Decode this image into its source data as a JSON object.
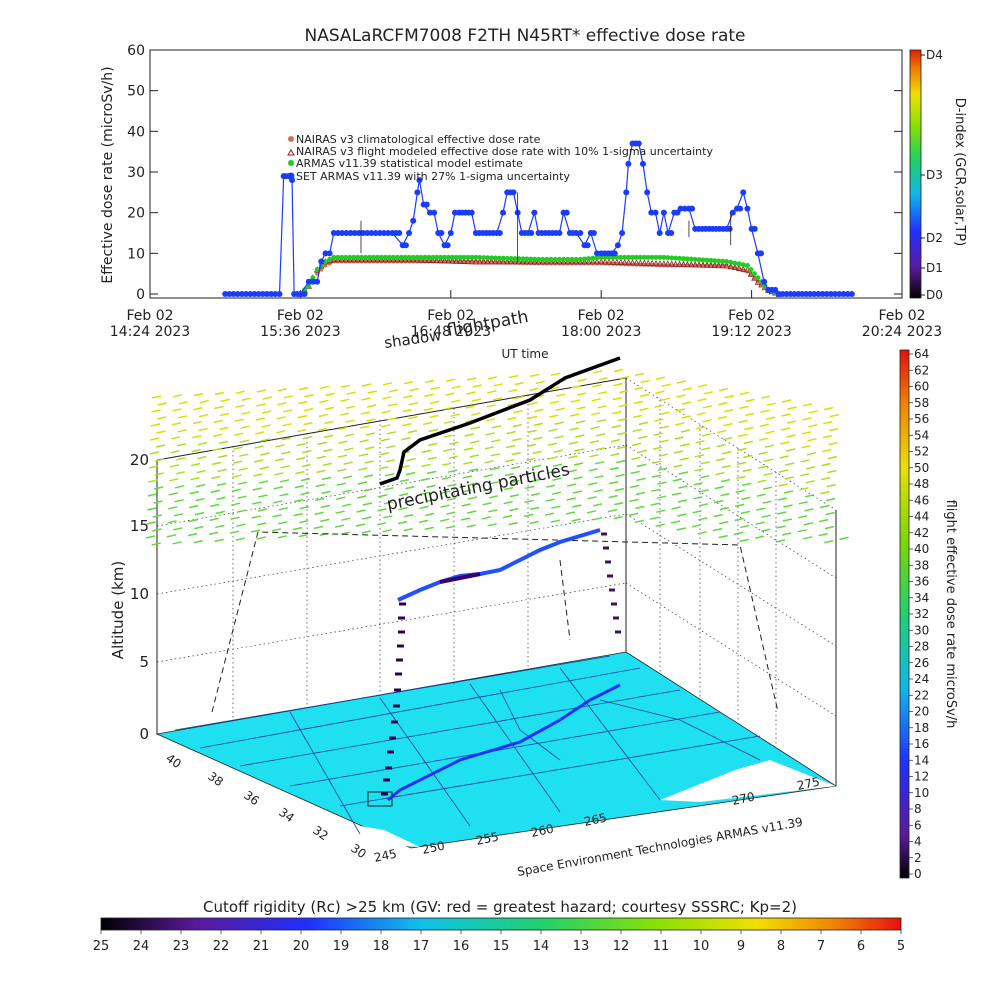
{
  "title": "NASALaRCFM7008  F2TH N45RT* effective dose rate",
  "top_panel": {
    "ylabel": "Effective dose rate (microSv/h)",
    "xlabel": "UT time",
    "x_ticks": [
      {
        "line1": "Feb 02",
        "line2": "14:24 2023"
      },
      {
        "line1": "Feb 02",
        "line2": "15:36 2023"
      },
      {
        "line1": "Feb 02",
        "line2": "16:48 2023"
      },
      {
        "line1": "Feb 02",
        "line2": "18:00 2023"
      },
      {
        "line1": "Feb 02",
        "line2": "19:12 2023"
      },
      {
        "line1": "Feb 02",
        "line2": "20:24 2023"
      }
    ],
    "y_ticks": [
      "0",
      "10",
      "20",
      "30",
      "40",
      "50",
      "60"
    ],
    "legend": [
      "NAIRAS v3 climatological effective dose rate",
      "NAIRAS v3 flight modeled effective dose rate with 10% 1-sigma uncertainty",
      "ARMAS v11.39 statistical model estimate",
      "SET ARMAS v11.39 with 27% 1-sigma uncertainty"
    ],
    "right_bar": {
      "label": "D-index (GCR,solar,TP)",
      "ticks": [
        "D4",
        "D3",
        "D2",
        "D1",
        "D0"
      ]
    }
  },
  "bottom_panel": {
    "ylabel": "Altitude (km)",
    "z_ticks": [
      "0",
      "5",
      "10",
      "15",
      "20"
    ],
    "lat_ticks": [
      "30",
      "32",
      "34",
      "36",
      "38",
      "40"
    ],
    "lon_ticks": [
      "245",
      "250",
      "255",
      "260",
      "265",
      "270",
      "275"
    ],
    "label_shadow": "shadow",
    "label_flightpath": "flightpath",
    "label_precip": "precipitating particles",
    "credit": "Space Environment Technologies ARMAS v11.39",
    "right_bar": {
      "label": "flight effective dose rate microSv/h",
      "ticks": [
        "64",
        "62",
        "60",
        "58",
        "56",
        "54",
        "52",
        "50",
        "48",
        "46",
        "44",
        "42",
        "40",
        "38",
        "36",
        "34",
        "32",
        "30",
        "28",
        "26",
        "24",
        "22",
        "20",
        "18",
        "16",
        "14",
        "12",
        "10",
        "8",
        "6",
        "4",
        "2",
        "0"
      ]
    }
  },
  "cutoff_bar": {
    "title": "Cutoff rigidity (Rc) >25 km (GV: red = greatest hazard; courtesy SSSRC; Kp=2)",
    "ticks": [
      "25",
      "24",
      "23",
      "22",
      "21",
      "20",
      "19",
      "18",
      "17",
      "16",
      "15",
      "14",
      "13",
      "12",
      "11",
      "10",
      "9",
      "8",
      "7",
      "6",
      "5"
    ]
  },
  "colors": {
    "climatological": "#d07060",
    "flight_modeled": "#8b2020",
    "statistical": "#22cc22",
    "armas": "#1a3cff",
    "flight_path": "#000000",
    "precip": "#9acd32",
    "ground": "#1ee0f0"
  },
  "chart_data": [
    {
      "type": "scatter",
      "title": "NASALaRCFM7008  F2TH N45RT* effective dose rate",
      "xlabel": "UT time",
      "ylabel": "Effective dose rate (microSv/h)",
      "x_unit": "UT time (Feb 02 2023)",
      "xlim": [
        "14:24",
        "20:24"
      ],
      "ylim": [
        0,
        60
      ],
      "series": [
        {
          "name": "SET ARMAS v11.39 with 27% 1-sigma uncertainty",
          "points": [
            [
              "15:00",
              0
            ],
            [
              "15:20",
              0
            ],
            [
              "15:26",
              0
            ],
            [
              "15:28",
              29
            ],
            [
              "15:29",
              29
            ],
            [
              "15:32",
              28
            ],
            [
              "15:33",
              0
            ],
            [
              "15:36",
              0
            ],
            [
              "15:40",
              3
            ],
            [
              "15:44",
              3
            ],
            [
              "15:46",
              8
            ],
            [
              "15:48",
              10
            ],
            [
              "15:50",
              10
            ],
            [
              "15:52",
              15
            ],
            [
              "16:00",
              15
            ],
            [
              "16:10",
              15
            ],
            [
              "16:20",
              15
            ],
            [
              "16:25",
              12
            ],
            [
              "16:28",
              15
            ],
            [
              "16:30",
              18
            ],
            [
              "16:32",
              25
            ],
            [
              "16:33",
              28
            ],
            [
              "16:35",
              22
            ],
            [
              "16:38",
              20
            ],
            [
              "16:40",
              20
            ],
            [
              "16:42",
              15
            ],
            [
              "16:45",
              12
            ],
            [
              "16:48",
              15
            ],
            [
              "16:50",
              20
            ],
            [
              "16:52",
              20
            ],
            [
              "16:55",
              20
            ],
            [
              "16:58",
              20
            ],
            [
              "17:00",
              15
            ],
            [
              "17:05",
              15
            ],
            [
              "17:10",
              15
            ],
            [
              "17:13",
              20
            ],
            [
              "17:15",
              25
            ],
            [
              "17:18",
              25
            ],
            [
              "17:20",
              20
            ],
            [
              "17:22",
              15
            ],
            [
              "17:25",
              15
            ],
            [
              "17:28",
              20
            ],
            [
              "17:30",
              15
            ],
            [
              "17:35",
              15
            ],
            [
              "17:40",
              15
            ],
            [
              "17:42",
              20
            ],
            [
              "17:45",
              15
            ],
            [
              "17:48",
              15
            ],
            [
              "17:52",
              12
            ],
            [
              "17:55",
              15
            ],
            [
              "17:58",
              10
            ],
            [
              "18:00",
              10
            ],
            [
              "18:05",
              10
            ],
            [
              "18:08",
              12
            ],
            [
              "18:10",
              15
            ],
            [
              "18:12",
              25
            ],
            [
              "18:13",
              32
            ],
            [
              "18:15",
              37
            ],
            [
              "18:18",
              37
            ],
            [
              "18:20",
              32
            ],
            [
              "18:22",
              25
            ],
            [
              "18:24",
              20
            ],
            [
              "18:26",
              20
            ],
            [
              "18:28",
              15
            ],
            [
              "18:30",
              20
            ],
            [
              "18:32",
              15
            ],
            [
              "18:35",
              20
            ],
            [
              "18:38",
              21
            ],
            [
              "18:42",
              21
            ],
            [
              "18:45",
              16
            ],
            [
              "18:50",
              16
            ],
            [
              "18:55",
              16
            ],
            [
              "19:00",
              16
            ],
            [
              "19:03",
              20
            ],
            [
              "19:05",
              21
            ],
            [
              "19:08",
              25
            ],
            [
              "19:10",
              21
            ],
            [
              "19:12",
              16
            ],
            [
              "19:15",
              10
            ],
            [
              "19:18",
              3
            ],
            [
              "19:20",
              1
            ],
            [
              "19:25",
              0
            ],
            [
              "19:40",
              0
            ],
            [
              "20:00",
              0
            ]
          ]
        },
        {
          "name": "ARMAS v11.39 statistical model estimate",
          "points": [
            [
              "15:36",
              0
            ],
            [
              "15:40",
              2
            ],
            [
              "15:44",
              6
            ],
            [
              "15:48",
              8
            ],
            [
              "15:52",
              9
            ],
            [
              "16:30",
              9
            ],
            [
              "17:00",
              9
            ],
            [
              "17:30",
              8.5
            ],
            [
              "17:50",
              8.5
            ],
            [
              "18:00",
              9
            ],
            [
              "18:30",
              9
            ],
            [
              "19:00",
              8
            ],
            [
              "19:10",
              7
            ],
            [
              "19:15",
              4
            ],
            [
              "19:20",
              1
            ],
            [
              "19:25",
              0
            ]
          ]
        },
        {
          "name": "NAIRAS v3 flight modeled effective dose rate with 10% 1-sigma uncertainty",
          "points": [
            [
              "15:36",
              0
            ],
            [
              "15:40",
              2
            ],
            [
              "15:44",
              6
            ],
            [
              "15:48",
              8
            ],
            [
              "15:52",
              8.5
            ],
            [
              "16:30",
              8.5
            ],
            [
              "17:00",
              8
            ],
            [
              "17:30",
              8
            ],
            [
              "17:50",
              8
            ],
            [
              "18:00",
              8
            ],
            [
              "18:30",
              7.5
            ],
            [
              "19:00",
              7
            ],
            [
              "19:10",
              6
            ],
            [
              "19:15",
              3
            ],
            [
              "19:20",
              1
            ],
            [
              "19:25",
              0
            ]
          ]
        },
        {
          "name": "NAIRAS v3 climatological effective dose rate",
          "points": [
            [
              "15:36",
              0
            ],
            [
              "15:40",
              2
            ],
            [
              "15:44",
              5
            ],
            [
              "15:48",
              7
            ],
            [
              "15:52",
              8
            ],
            [
              "16:30",
              8
            ],
            [
              "17:00",
              8
            ],
            [
              "17:30",
              7.5
            ],
            [
              "17:50",
              7.5
            ],
            [
              "18:00",
              7.5
            ],
            [
              "18:30",
              7
            ],
            [
              "19:00",
              7
            ],
            [
              "19:10",
              5.5
            ],
            [
              "19:15",
              3
            ],
            [
              "19:20",
              1
            ],
            [
              "19:25",
              0
            ]
          ]
        }
      ]
    },
    {
      "type": "line",
      "title": "",
      "zlabel": "Altitude (km)",
      "zlim": [
        0,
        20
      ],
      "latlim": [
        30,
        40
      ],
      "lonlim": [
        245,
        275
      ],
      "series": [
        {
          "name": "flightpath",
          "points_lon_lat_alt": [
            [
              251,
              33.6,
              0
            ],
            [
              251.3,
              33.8,
              3
            ],
            [
              251.6,
              34.0,
              7
            ],
            [
              252,
              34.3,
              10
            ],
            [
              256,
              35.0,
              11
            ],
            [
              259,
              35.7,
              11.5
            ],
            [
              262,
              36.3,
              12.5
            ],
            [
              265,
              36.6,
              12.5
            ],
            [
              267,
              37.0,
              13
            ],
            [
              268.6,
              37.3,
              13.5
            ],
            [
              268.8,
              37.3,
              8
            ],
            [
              268.9,
              37.3,
              5
            ]
          ]
        }
      ]
    }
  ]
}
